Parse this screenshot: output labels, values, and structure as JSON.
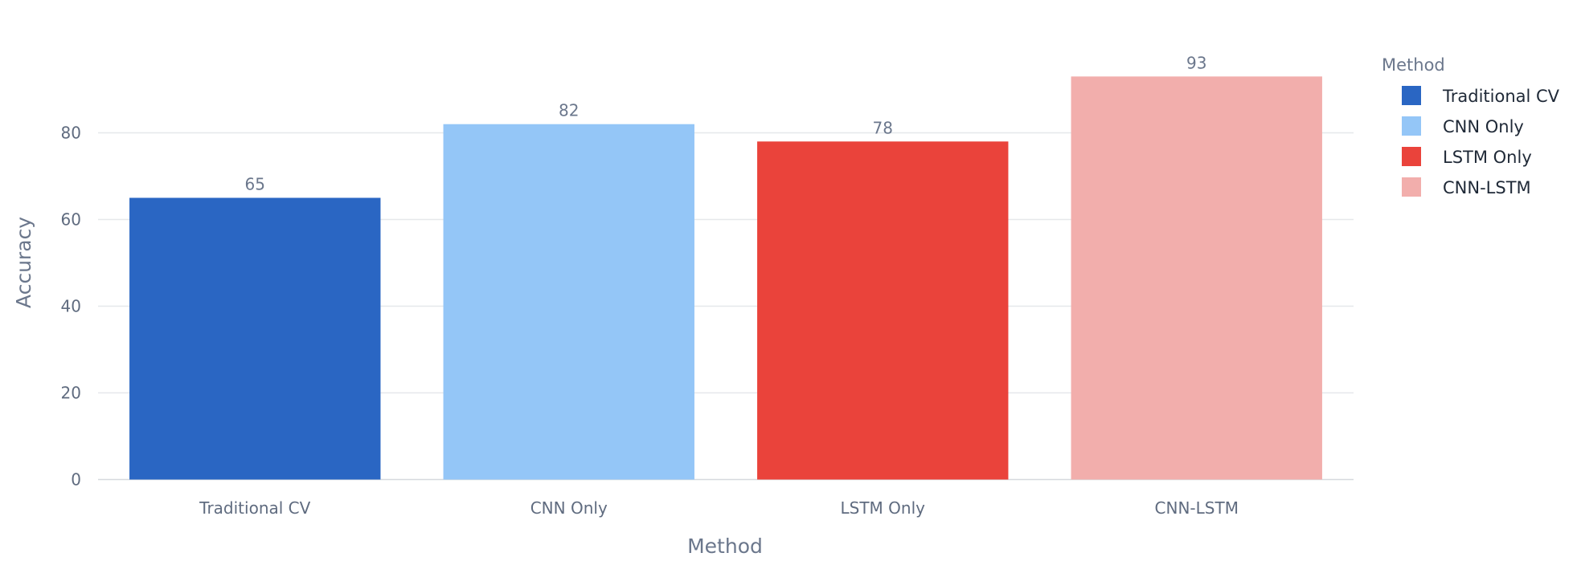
{
  "chart_data": {
    "type": "bar",
    "categories": [
      "Traditional CV",
      "CNN Only",
      "LSTM Only",
      "CNN-LSTM"
    ],
    "values": [
      65,
      82,
      78,
      93
    ],
    "colors": [
      "#2a66c3",
      "#94c6f7",
      "#ea433b",
      "#f2aeac"
    ],
    "data_labels": [
      "65",
      "82",
      "78",
      "93"
    ],
    "title": "",
    "xlabel": "Method",
    "ylabel": "Accuracy",
    "ylim": [
      0,
      100
    ],
    "y_ticks": [
      0,
      20,
      40,
      60,
      80
    ],
    "grid": true,
    "legend": {
      "title": "Method",
      "position": "top-right",
      "entries": [
        "Traditional CV",
        "CNN Only",
        "LSTM Only",
        "CNN-LSTM"
      ]
    }
  }
}
